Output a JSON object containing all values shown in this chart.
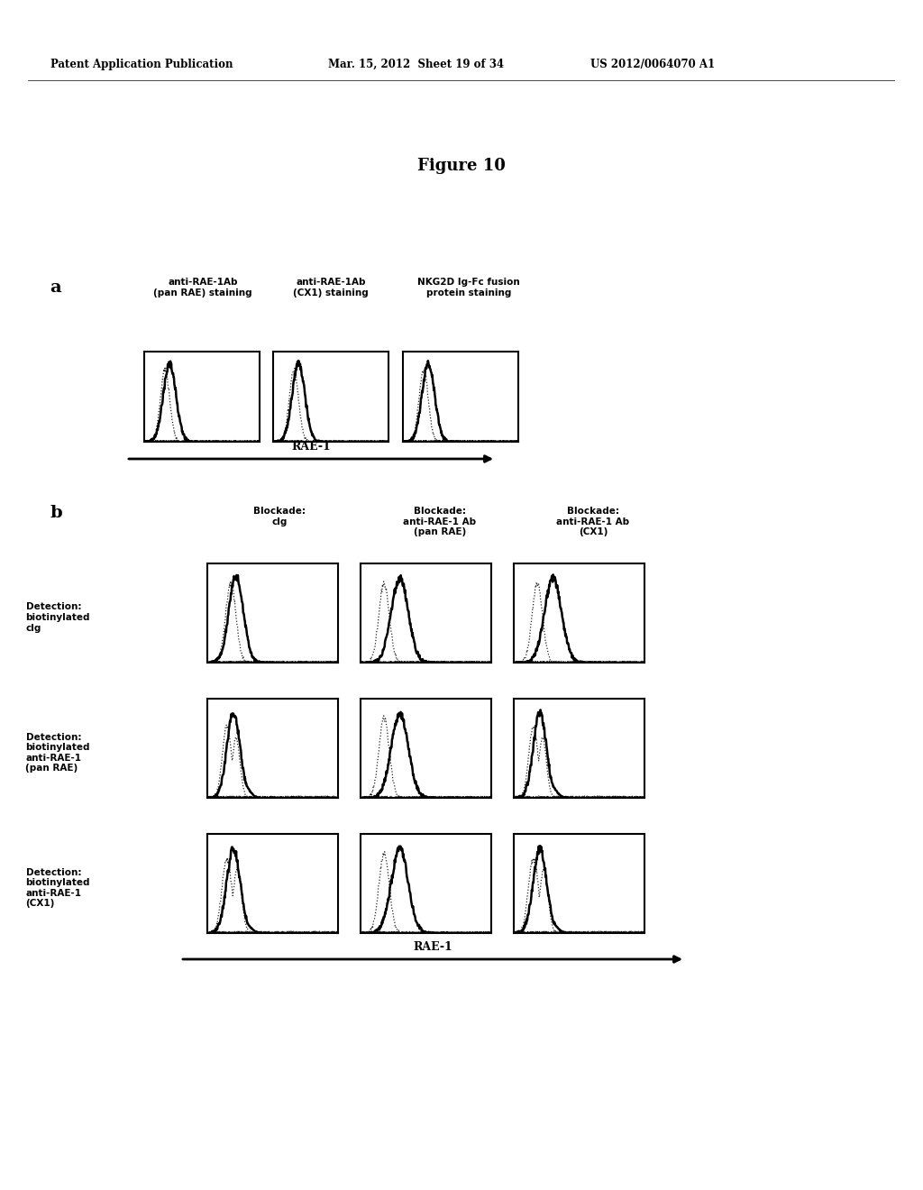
{
  "header_left": "Patent Application Publication",
  "header_mid": "Mar. 15, 2012  Sheet 19 of 34",
  "header_right": "US 2012/0064070 A1",
  "figure_title": "Figure 10",
  "panel_a_label": "a",
  "panel_b_label": "b",
  "panel_a_col_labels": [
    "anti-RAE-1Ab\n(pan RAE) staining",
    "anti-RAE-1Ab\n(CX1) staining",
    "NKG2D Ig-Fc fusion\nprotein staining"
  ],
  "panel_b_col_labels": [
    "Blockade:\nclg",
    "Blockade:\nanti-RAE-1 Ab\n(pan RAE)",
    "Blockade:\nanti-RAE-1 Ab\n(CX1)"
  ],
  "panel_b_row_labels": [
    "Detection:\nbiotinylated\nclg",
    "Detection:\nbiotinylated\nanti-RAE-1\n(pan RAE)",
    "Detection:\nbiotinylated\nanti-RAE-1\n(CX1)"
  ],
  "xaxis_label": "RAE-1",
  "background_color": "#ffffff"
}
